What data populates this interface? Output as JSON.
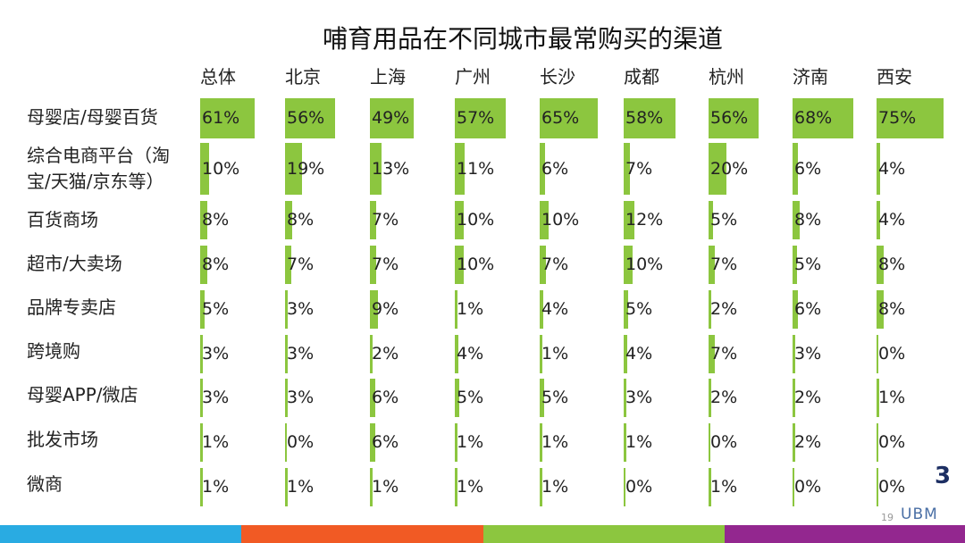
{
  "chart_data": {
    "type": "table",
    "title": "哺育用品在不同城市最常购买的渠道",
    "columns": [
      "总体",
      "北京",
      "上海",
      "广州",
      "长沙",
      "成都",
      "杭州",
      "济南",
      "西安"
    ],
    "rows": [
      {
        "label": "母婴店/母婴百货",
        "values": [
          61,
          56,
          49,
          57,
          65,
          58,
          56,
          68,
          75
        ],
        "text": [
          "61%",
          "56%",
          "49%",
          "57%",
          "65%",
          "58%",
          "56%",
          "68%",
          "75%"
        ]
      },
      {
        "label": "综合电商平台（淘宝/天猫/京东等）",
        "values": [
          10,
          19,
          13,
          11,
          6,
          7,
          20,
          6,
          4
        ],
        "text": [
          "10%",
          "19%",
          "13%",
          "11%",
          "6%",
          "7%",
          "20%",
          "6%",
          "4%"
        ]
      },
      {
        "label": "百货商场",
        "values": [
          8,
          8,
          7,
          10,
          10,
          12,
          5,
          8,
          4
        ],
        "text": [
          "8%",
          "8%",
          "7%",
          "10%",
          "10%",
          "12%",
          "5%",
          "8%",
          "4%"
        ]
      },
      {
        "label": "超市/大卖场",
        "values": [
          8,
          7,
          7,
          10,
          7,
          10,
          7,
          5,
          8
        ],
        "text": [
          "8%",
          "7%",
          "7%",
          "10%",
          "7%",
          "10%",
          "7%",
          "5%",
          "8%"
        ]
      },
      {
        "label": "品牌专卖店",
        "values": [
          5,
          3,
          9,
          1,
          4,
          5,
          2,
          6,
          8
        ],
        "text": [
          "5%",
          "3%",
          "9%",
          "1%",
          "4%",
          "5%",
          "2%",
          "6%",
          "8%"
        ]
      },
      {
        "label": "跨境购",
        "values": [
          3,
          3,
          2,
          4,
          1,
          4,
          7,
          3,
          0
        ],
        "text": [
          "3%",
          "3%",
          "2%",
          "4%",
          "1%",
          "4%",
          "7%",
          "3%",
          "0%"
        ]
      },
      {
        "label": "母婴APP/微店",
        "values": [
          3,
          3,
          6,
          5,
          5,
          3,
          2,
          2,
          1
        ],
        "text": [
          "3%",
          "3%",
          "6%",
          "5%",
          "5%",
          "3%",
          "2%",
          "2%",
          "1%"
        ]
      },
      {
        "label": "批发市场",
        "values": [
          1,
          0,
          6,
          1,
          1,
          1,
          0,
          2,
          0
        ],
        "text": [
          "1%",
          "0%",
          "6%",
          "1%",
          "1%",
          "1%",
          "0%",
          "2%",
          "0%"
        ]
      },
      {
        "label": "微商",
        "values": [
          1,
          1,
          1,
          1,
          1,
          0,
          1,
          0,
          0
        ],
        "text": [
          "1%",
          "1%",
          "1%",
          "1%",
          "1%",
          "0%",
          "1%",
          "0%",
          "0%"
        ]
      }
    ],
    "bar_color": "#8cc63f",
    "value_range": [
      0,
      100
    ]
  },
  "footer": {
    "page_number": "19",
    "logo_text": "UBM",
    "logo_mark": "3",
    "stripe_colors": [
      "#29abe2",
      "#f15a24",
      "#8cc63f",
      "#93278f"
    ]
  }
}
